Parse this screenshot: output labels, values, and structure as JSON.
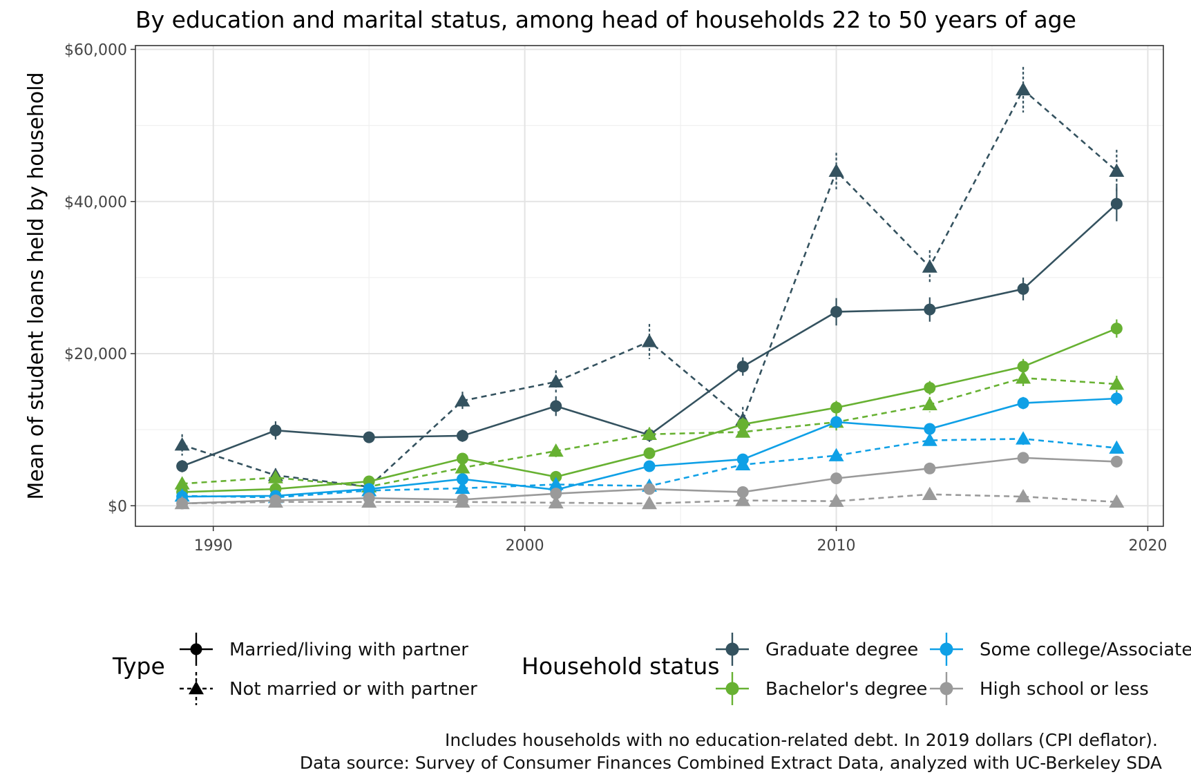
{
  "chart_data": {
    "type": "line",
    "title": "By education and marital status, among head of households 22 to 50 years of age",
    "ylabel": "Mean of student loans held by household",
    "xlabel": "",
    "xlim": [
      1987.5,
      2020.5
    ],
    "ylim": [
      -2700,
      60500
    ],
    "x_ticks": [
      1990,
      2000,
      2010,
      2020
    ],
    "x_tick_labels": [
      "1990",
      "2000",
      "2010",
      "2020"
    ],
    "y_ticks": [
      0,
      20000,
      40000,
      60000
    ],
    "y_tick_labels": [
      "$0",
      "$20,000",
      "$40,000",
      "$60,000"
    ],
    "grid": true,
    "legend_placement": "bottom",
    "x": [
      1989,
      1992,
      1995,
      1998,
      2001,
      2004,
      2007,
      2010,
      2013,
      2016,
      2019
    ],
    "legend_type": {
      "title": "Type",
      "items": [
        {
          "label": "Married/living with partner",
          "key": "married",
          "marker": "circle",
          "dash": "solid"
        },
        {
          "label": "Not married or with partner",
          "key": "single",
          "marker": "triangle",
          "dash": "dashed"
        }
      ]
    },
    "legend_status": {
      "title": "Household status",
      "items": [
        {
          "label": "Graduate degree",
          "key": "grad",
          "color": "#34525f"
        },
        {
          "label": "Some college/Associate'",
          "key": "some",
          "color": "#0fa0e6"
        },
        {
          "label": "Bachelor's degree",
          "key": "bach",
          "color": "#67b132"
        },
        {
          "label": "High school or less",
          "key": "hs",
          "color": "#9a9a9a"
        }
      ]
    },
    "series": [
      {
        "status": "grad",
        "type": "single",
        "color": "#34525f",
        "values": [
          8000,
          4000,
          2500,
          13800,
          16300,
          21600,
          11300,
          44000,
          31400,
          54700,
          44000
        ],
        "errors": [
          1400,
          900,
          700,
          1200,
          1500,
          2300,
          1700,
          2400,
          2200,
          3000,
          2800
        ]
      },
      {
        "status": "grad",
        "type": "married",
        "color": "#34525f",
        "values": [
          5200,
          9900,
          9000,
          9200,
          13100,
          9300,
          18300,
          25500,
          25800,
          28500,
          39700
        ],
        "errors": [
          800,
          1200,
          700,
          800,
          1300,
          900,
          1200,
          1800,
          1600,
          1500,
          2300
        ]
      },
      {
        "status": "bach",
        "type": "single",
        "color": "#67b132",
        "values": [
          2900,
          3700,
          2500,
          5000,
          7200,
          9400,
          9700,
          11000,
          13300,
          16800,
          16000
        ],
        "errors": [
          500,
          600,
          500,
          700,
          800,
          900,
          900,
          1100,
          1000,
          1200,
          1100
        ]
      },
      {
        "status": "bach",
        "type": "married",
        "color": "#67b132",
        "values": [
          1800,
          2200,
          3200,
          6200,
          3800,
          6900,
          10700,
          12900,
          15500,
          18300,
          23300
        ],
        "errors": [
          400,
          400,
          500,
          700,
          600,
          700,
          900,
          900,
          900,
          1000,
          1200
        ]
      },
      {
        "status": "some",
        "type": "single",
        "color": "#0fa0e6",
        "values": [
          1300,
          1100,
          2000,
          2300,
          2800,
          2600,
          5400,
          6600,
          8600,
          8800,
          7600
        ],
        "errors": [
          300,
          300,
          400,
          400,
          500,
          500,
          600,
          700,
          700,
          800,
          700
        ]
      },
      {
        "status": "some",
        "type": "married",
        "color": "#0fa0e6",
        "values": [
          1200,
          1300,
          2200,
          3500,
          2100,
          5200,
          6100,
          11000,
          10100,
          13500,
          14100
        ],
        "errors": [
          300,
          300,
          400,
          500,
          400,
          500,
          600,
          800,
          700,
          800,
          900
        ]
      },
      {
        "status": "hs",
        "type": "married",
        "color": "#9a9a9a",
        "values": [
          300,
          700,
          1000,
          800,
          1600,
          2200,
          1800,
          3600,
          4900,
          6300,
          5800
        ],
        "errors": [
          150,
          200,
          200,
          200,
          300,
          300,
          300,
          400,
          400,
          500,
          500
        ]
      },
      {
        "status": "hs",
        "type": "single",
        "color": "#9a9a9a",
        "values": [
          300,
          500,
          500,
          500,
          400,
          300,
          700,
          600,
          1500,
          1200,
          500
        ],
        "errors": [
          100,
          150,
          150,
          150,
          150,
          100,
          200,
          200,
          300,
          300,
          200
        ]
      }
    ]
  },
  "caption_line1": "Includes households with no education-related debt. In 2019 dollars (CPI deflator).",
  "caption_line2": "Data source: Survey of Consumer Finances Combined Extract Data, analyzed with UC-Berkeley SDA"
}
